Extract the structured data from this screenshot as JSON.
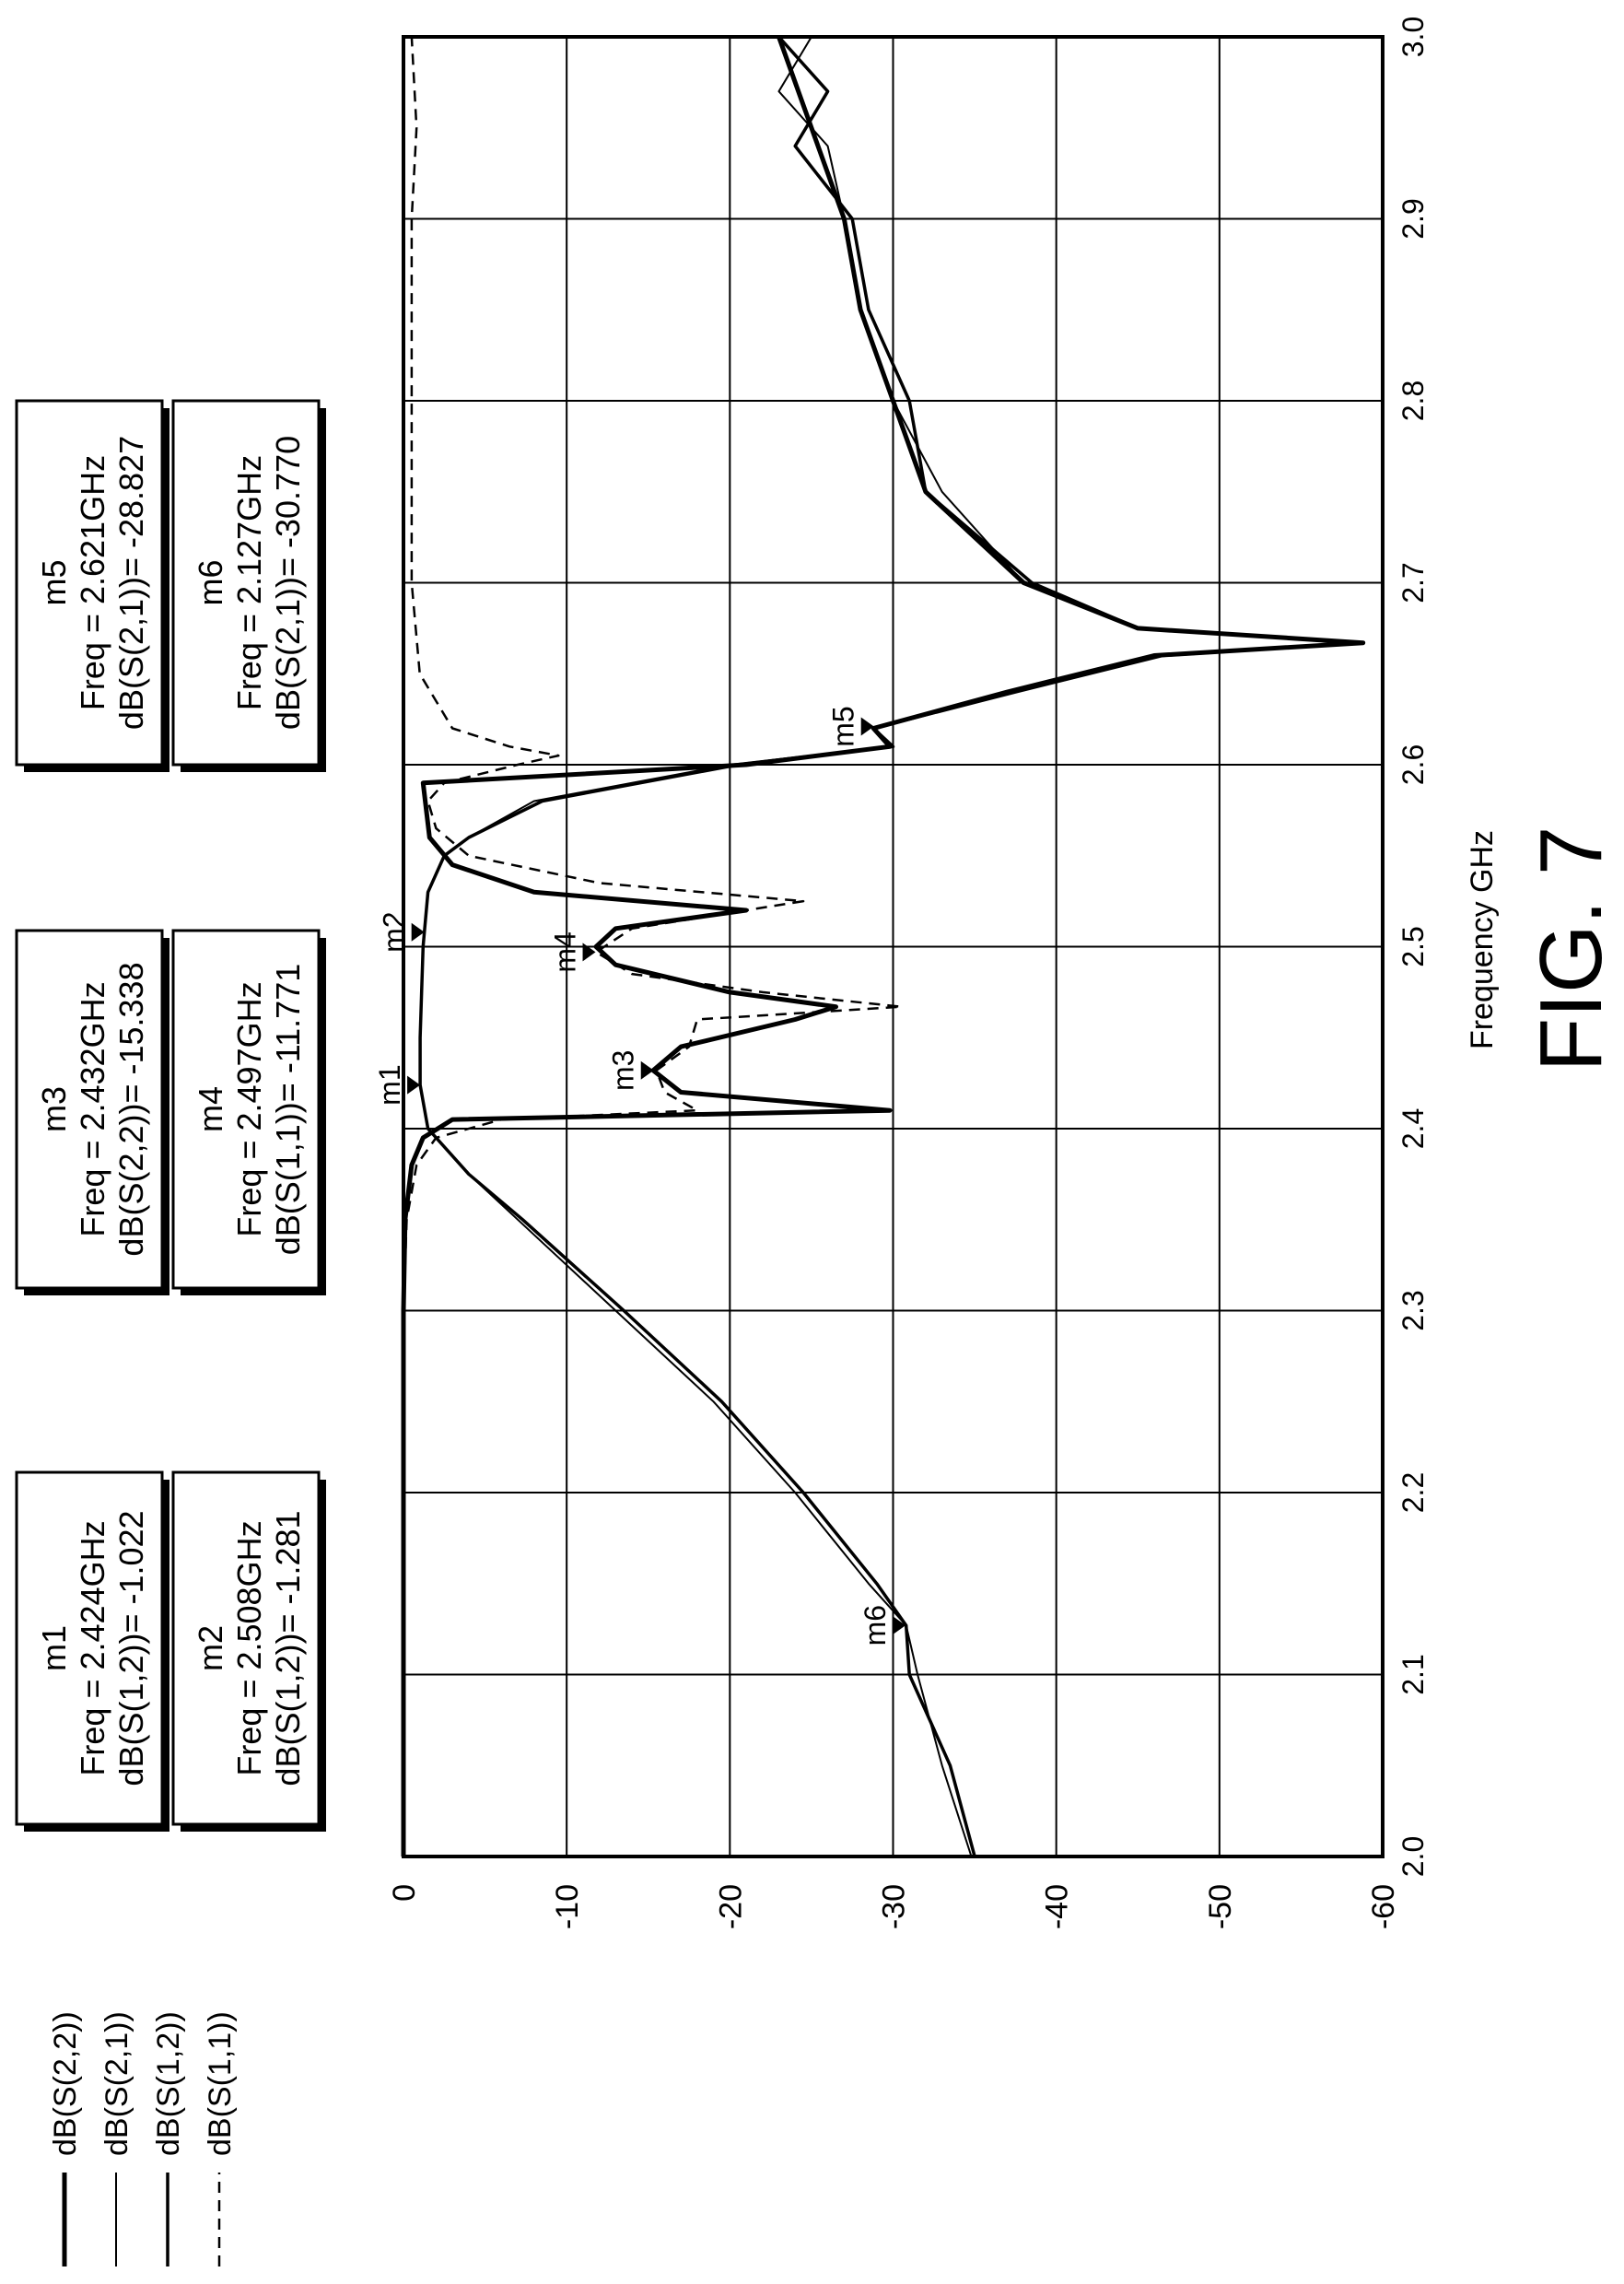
{
  "figure": {
    "label": "FIG. 7"
  },
  "chart_data": {
    "type": "line",
    "xlabel": "Frequency GHz",
    "ylabel": "",
    "xlim": [
      2.0,
      3.0
    ],
    "ylim": [
      -60,
      0
    ],
    "x_ticks": [
      "2.0",
      "2.1",
      "2.2",
      "2.3",
      "2.4",
      "2.5",
      "2.6",
      "2.7",
      "2.8",
      "2.9",
      "3.0"
    ],
    "y_ticks": [
      "0",
      "-10",
      "-20",
      "-30",
      "-40",
      "-50",
      "-60"
    ],
    "grid": true,
    "legend_position": "left",
    "legend": [
      {
        "label": "dB(S(2,2))",
        "style": "thick"
      },
      {
        "label": "dB(S(2,1))",
        "style": "thin"
      },
      {
        "label": "dB(S(1,2))",
        "style": "medium"
      },
      {
        "label": "dB(S(1,1))",
        "style": "dashed"
      }
    ],
    "series": [
      {
        "name": "dB(S(2,2))",
        "style": "thick",
        "x": [
          2.0,
          2.1,
          2.2,
          2.3,
          2.35,
          2.38,
          2.395,
          2.405,
          2.41,
          2.42,
          2.432,
          2.445,
          2.46,
          2.467,
          2.475,
          2.49,
          2.5,
          2.51,
          2.52,
          2.53,
          2.545,
          2.56,
          2.59,
          2.6,
          2.61,
          2.62,
          2.64,
          2.66,
          2.667,
          2.675,
          2.7,
          2.75,
          2.8,
          2.85,
          2.9,
          2.95,
          3.0
        ],
        "y": [
          0,
          0,
          0,
          0,
          -0.1,
          -0.5,
          -1.2,
          -3,
          -29.8,
          -17,
          -15.3,
          -17,
          -24,
          -26.5,
          -20,
          -13,
          -11.8,
          -13,
          -21,
          -8,
          -3,
          -1.6,
          -1.2,
          -21,
          -29.8,
          -28.8,
          -37,
          -46,
          -58.8,
          -45,
          -38,
          -32,
          -30,
          -28,
          -27,
          -25,
          -23
        ]
      },
      {
        "name": "dB(S(2,1))",
        "style": "thin",
        "x": [
          2.0,
          2.05,
          2.1,
          2.127,
          2.15,
          2.2,
          2.25,
          2.3,
          2.35,
          2.375,
          2.4,
          2.424,
          2.45,
          2.5,
          2.508,
          2.53,
          2.55,
          2.56,
          2.58,
          2.6,
          2.61,
          2.62,
          2.64,
          2.66,
          2.667,
          2.675,
          2.7,
          2.75,
          2.8,
          2.85,
          2.9,
          2.94,
          2.97,
          3.0
        ],
        "y": [
          -34.8,
          -33,
          -31.5,
          -30.8,
          -28.5,
          -24,
          -19,
          -13,
          -7,
          -4,
          -1.5,
          -1,
          -1,
          -1.2,
          -1.3,
          -1.5,
          -2.5,
          -4,
          -8,
          -20,
          -29.8,
          -28.8,
          -37,
          -46,
          -58.8,
          -45,
          -38,
          -33,
          -30,
          -28,
          -27,
          -26,
          -23,
          -25
        ]
      },
      {
        "name": "dB(S(1,2))",
        "style": "medium",
        "x": [
          2.0,
          2.05,
          2.1,
          2.127,
          2.15,
          2.2,
          2.25,
          2.3,
          2.35,
          2.375,
          2.4,
          2.424,
          2.45,
          2.5,
          2.508,
          2.53,
          2.55,
          2.56,
          2.58,
          2.6,
          2.61,
          2.62,
          2.64,
          2.66,
          2.667,
          2.675,
          2.7,
          2.75,
          2.8,
          2.85,
          2.9,
          2.94,
          2.97,
          3.0
        ],
        "y": [
          -35,
          -33.5,
          -31,
          -30.8,
          -29,
          -24.5,
          -19.5,
          -13.5,
          -7.3,
          -4,
          -1.5,
          -1.02,
          -1.02,
          -1.2,
          -1.28,
          -1.5,
          -2.5,
          -4,
          -8.5,
          -20.5,
          -30,
          -28.8,
          -37.5,
          -46.5,
          -58.8,
          -45,
          -38.5,
          -32,
          -31,
          -28.5,
          -27.5,
          -24,
          -26,
          -23
        ]
      },
      {
        "name": "dB(S(1,1))",
        "style": "dashed",
        "x": [
          2.0,
          2.1,
          2.2,
          2.3,
          2.35,
          2.38,
          2.395,
          2.405,
          2.41,
          2.42,
          2.432,
          2.445,
          2.46,
          2.467,
          2.475,
          2.485,
          2.497,
          2.51,
          2.525,
          2.535,
          2.55,
          2.565,
          2.58,
          2.59,
          2.6,
          2.605,
          2.61,
          2.62,
          2.65,
          2.7,
          2.8,
          2.9,
          2.95,
          3.0
        ],
        "y": [
          0,
          0,
          0,
          0,
          -0.2,
          -0.8,
          -2,
          -6,
          -18,
          -16,
          -15.5,
          -17.5,
          -18,
          -30.5,
          -22,
          -14,
          -11.8,
          -14,
          -24.5,
          -12,
          -4,
          -2,
          -1.5,
          -2.5,
          -7,
          -9.5,
          -6.5,
          -3,
          -1,
          -0.5,
          -0.5,
          -0.5,
          -0.8,
          -0.5
        ]
      }
    ],
    "markers": [
      {
        "id": "m1",
        "series": "dB(S(1,2))",
        "x": 2.424,
        "y": -1.022,
        "info_freq": "Freq = 2.424GHz",
        "info_value": "dB(S(1,2))= -1.022"
      },
      {
        "id": "m2",
        "series": "dB(S(1,2))",
        "x": 2.508,
        "y": -1.281,
        "info_freq": "Freq = 2.508GHz",
        "info_value": "dB(S(1,2))= -1.281"
      },
      {
        "id": "m3",
        "series": "dB(S(2,2))",
        "x": 2.432,
        "y": -15.338,
        "info_freq": "Freq = 2.432GHz",
        "info_value": "dB(S(2,2))= -15.338"
      },
      {
        "id": "m4",
        "series": "dB(S(1,1))",
        "x": 2.497,
        "y": -11.771,
        "info_freq": "Freq = 2.497GHz",
        "info_value": "dB(S(1,1))= -11.771"
      },
      {
        "id": "m5",
        "series": "dB(S(2,1))",
        "x": 2.621,
        "y": -28.827,
        "info_freq": "Freq = 2.621GHz",
        "info_value": "dB(S(2,1))= -28.827"
      },
      {
        "id": "m6",
        "series": "dB(S(2,1))",
        "x": 2.127,
        "y": -30.77,
        "info_freq": "Freq = 2.127GHz",
        "info_value": "dB(S(2,1))= -30.770"
      }
    ]
  }
}
